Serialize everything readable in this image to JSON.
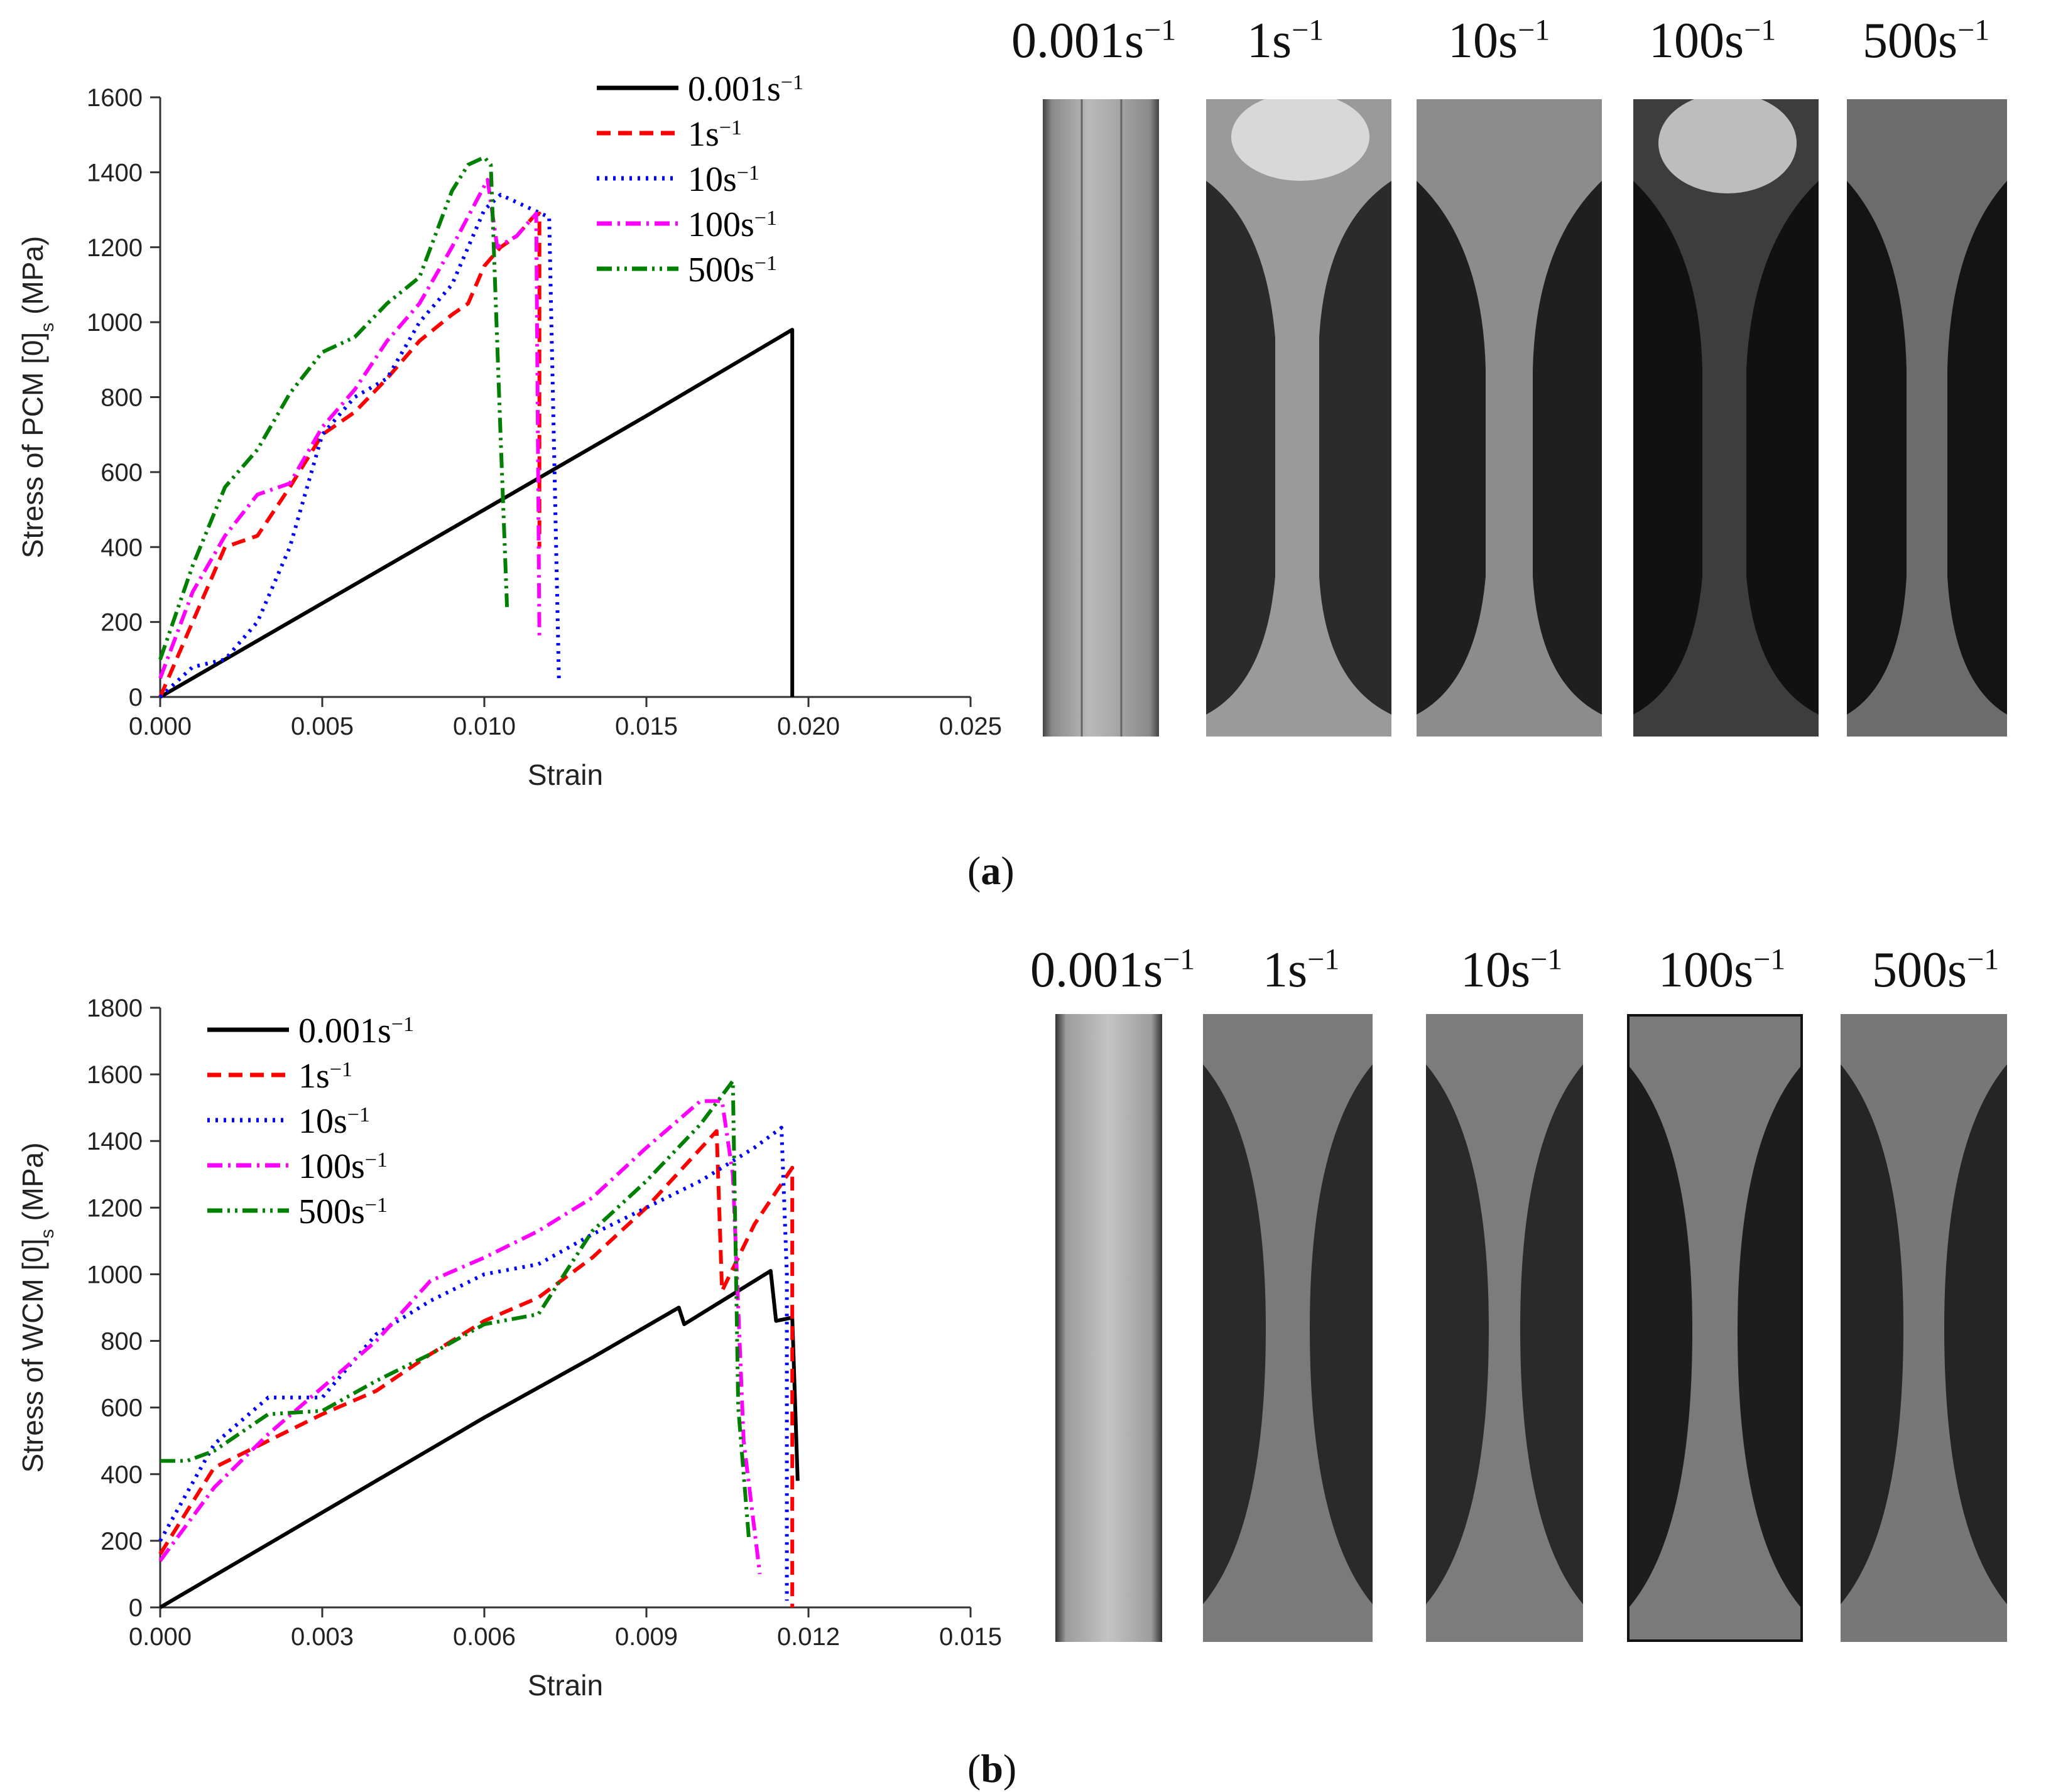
{
  "captions": {
    "a_letter": "a",
    "b_letter": "b"
  },
  "colors": {
    "s0001": "#000000",
    "s1": "#ff0000",
    "s10": "#0000ff",
    "s100": "#ff00ff",
    "s500": "#008000"
  },
  "panel_a": {
    "photo_labels": [
      {
        "base": "0.001s",
        "sup": "−1"
      },
      {
        "base": "1s",
        "sup": "−1"
      },
      {
        "base": "10s",
        "sup": "−1"
      },
      {
        "base": "100s",
        "sup": "−1"
      },
      {
        "base": "500s",
        "sup": "−1"
      }
    ]
  },
  "panel_b": {
    "photo_labels": [
      {
        "base": "0.001s",
        "sup": "−1"
      },
      {
        "base": "1s",
        "sup": "−1"
      },
      {
        "base": "10s",
        "sup": "−1"
      },
      {
        "base": "100s",
        "sup": "−1"
      },
      {
        "base": "500s",
        "sup": "−1"
      }
    ]
  },
  "chart_data": [
    {
      "type": "line",
      "title": "",
      "xlabel": "Strain",
      "ylabel_main": "Stress of PCM [0]",
      "ylabel_sub": "s",
      "ylabel_unit": " (MPa)",
      "xlim": [
        0,
        0.025
      ],
      "ylim": [
        0,
        1600
      ],
      "xticks": [
        "0.000",
        "0.005",
        "0.010",
        "0.015",
        "0.020",
        "0.025"
      ],
      "xtick_values": [
        0,
        0.005,
        0.01,
        0.015,
        0.02,
        0.025
      ],
      "yticks": [
        "0",
        "200",
        "400",
        "600",
        "800",
        "1000",
        "1200",
        "1400",
        "1600"
      ],
      "ytick_values": [
        0,
        200,
        400,
        600,
        800,
        1000,
        1200,
        1400,
        1600
      ],
      "legend_position": "top-right",
      "series": [
        {
          "name": "0.001s",
          "sup": "−1",
          "style": "solid",
          "x": [
            0,
            0.005,
            0.01,
            0.015,
            0.0195,
            0.0195
          ],
          "y": [
            0,
            250,
            500,
            750,
            980,
            0
          ]
        },
        {
          "name": "1s",
          "sup": "−1",
          "style": "dashed",
          "x": [
            0,
            0.001,
            0.002,
            0.003,
            0.004,
            0.005,
            0.006,
            0.007,
            0.008,
            0.009,
            0.0095,
            0.01,
            0.0105,
            0.011,
            0.0115,
            0.0117,
            0.0117
          ],
          "y": [
            0,
            200,
            400,
            430,
            560,
            700,
            760,
            850,
            950,
            1020,
            1050,
            1150,
            1200,
            1230,
            1280,
            1290,
            400
          ]
        },
        {
          "name": "10s",
          "sup": "−1",
          "style": "dotted",
          "x": [
            0,
            0.001,
            0.002,
            0.003,
            0.004,
            0.005,
            0.006,
            0.007,
            0.008,
            0.009,
            0.0095,
            0.01,
            0.0105,
            0.011,
            0.0115,
            0.012,
            0.0123
          ],
          "y": [
            0,
            80,
            100,
            200,
            400,
            700,
            800,
            850,
            1000,
            1100,
            1200,
            1300,
            1340,
            1320,
            1300,
            1280,
            50
          ]
        },
        {
          "name": "100s",
          "sup": "−1",
          "style": "dashdot",
          "x": [
            0,
            0.001,
            0.002,
            0.003,
            0.004,
            0.005,
            0.006,
            0.007,
            0.008,
            0.009,
            0.0101,
            0.0104,
            0.011,
            0.0116,
            0.0117
          ],
          "y": [
            50,
            280,
            430,
            540,
            570,
            720,
            820,
            950,
            1050,
            1200,
            1380,
            1200,
            1230,
            1290,
            150
          ]
        },
        {
          "name": "500s",
          "sup": "−1",
          "style": "dashdotdot",
          "x": [
            0,
            0.001,
            0.002,
            0.003,
            0.004,
            0.005,
            0.006,
            0.007,
            0.008,
            0.009,
            0.0095,
            0.01,
            0.0102,
            0.0105,
            0.0107
          ],
          "y": [
            100,
            350,
            560,
            660,
            810,
            920,
            960,
            1050,
            1120,
            1350,
            1420,
            1440,
            1420,
            700,
            240
          ]
        }
      ]
    },
    {
      "type": "line",
      "title": "",
      "xlabel": "Strain",
      "ylabel_main": "Stress of WCM [0]",
      "ylabel_sub": "s",
      "ylabel_unit": " (MPa)",
      "xlim": [
        0,
        0.015
      ],
      "ylim": [
        0,
        1800
      ],
      "xticks": [
        "0.000",
        "0.003",
        "0.006",
        "0.009",
        "0.012",
        "0.015"
      ],
      "xtick_values": [
        0,
        0.003,
        0.006,
        0.009,
        0.012,
        0.015
      ],
      "yticks": [
        "0",
        "200",
        "400",
        "600",
        "800",
        "1000",
        "1200",
        "1400",
        "1600",
        "1800"
      ],
      "ytick_values": [
        0,
        200,
        400,
        600,
        800,
        1000,
        1200,
        1400,
        1600,
        1800
      ],
      "legend_position": "top-left",
      "series": [
        {
          "name": "0.001s",
          "sup": "−1",
          "style": "solid",
          "x": [
            0,
            0.002,
            0.004,
            0.006,
            0.008,
            0.0096,
            0.0097,
            0.0113,
            0.0114,
            0.0117,
            0.0118
          ],
          "y": [
            0,
            190,
            380,
            570,
            750,
            900,
            850,
            1010,
            860,
            870,
            380
          ]
        },
        {
          "name": "1s",
          "sup": "−1",
          "style": "dashed",
          "x": [
            0,
            0.001,
            0.002,
            0.003,
            0.004,
            0.005,
            0.006,
            0.007,
            0.008,
            0.009,
            0.0103,
            0.0104,
            0.011,
            0.0117,
            0.0117
          ],
          "y": [
            160,
            420,
            500,
            580,
            650,
            760,
            860,
            930,
            1050,
            1200,
            1430,
            950,
            1150,
            1320,
            0
          ]
        },
        {
          "name": "10s",
          "sup": "−1",
          "style": "dotted",
          "x": [
            0,
            0.001,
            0.002,
            0.003,
            0.004,
            0.005,
            0.006,
            0.007,
            0.008,
            0.009,
            0.01,
            0.011,
            0.0115,
            0.0116,
            0.0116
          ],
          "y": [
            200,
            490,
            630,
            630,
            820,
            920,
            1000,
            1030,
            1120,
            1200,
            1280,
            1380,
            1440,
            1000,
            20
          ]
        },
        {
          "name": "100s",
          "sup": "−1",
          "style": "dashdot",
          "x": [
            0,
            0.001,
            0.002,
            0.003,
            0.004,
            0.005,
            0.006,
            0.007,
            0.008,
            0.009,
            0.01,
            0.0104,
            0.0106,
            0.0108,
            0.0111
          ],
          "y": [
            140,
            360,
            520,
            660,
            800,
            980,
            1050,
            1130,
            1230,
            1380,
            1520,
            1520,
            1300,
            500,
            100
          ]
        },
        {
          "name": "500s",
          "sup": "−1",
          "style": "dashdotdot",
          "x": [
            0,
            0.0005,
            0.001,
            0.002,
            0.003,
            0.004,
            0.005,
            0.006,
            0.007,
            0.008,
            0.009,
            0.01,
            0.0106,
            0.0107,
            0.0109
          ],
          "y": [
            440,
            440,
            470,
            580,
            590,
            680,
            760,
            850,
            880,
            1130,
            1280,
            1450,
            1580,
            600,
            200
          ]
        }
      ]
    }
  ]
}
